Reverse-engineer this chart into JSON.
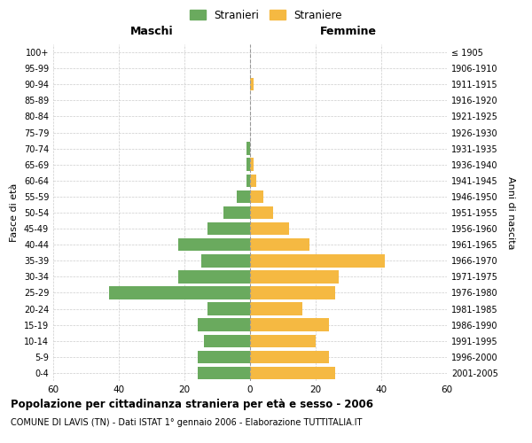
{
  "age_groups": [
    "0-4",
    "5-9",
    "10-14",
    "15-19",
    "20-24",
    "25-29",
    "30-34",
    "35-39",
    "40-44",
    "45-49",
    "50-54",
    "55-59",
    "60-64",
    "65-69",
    "70-74",
    "75-79",
    "80-84",
    "85-89",
    "90-94",
    "95-99",
    "100+"
  ],
  "birth_years": [
    "2001-2005",
    "1996-2000",
    "1991-1995",
    "1986-1990",
    "1981-1985",
    "1976-1980",
    "1971-1975",
    "1966-1970",
    "1961-1965",
    "1956-1960",
    "1951-1955",
    "1946-1950",
    "1941-1945",
    "1936-1940",
    "1931-1935",
    "1926-1930",
    "1921-1925",
    "1916-1920",
    "1911-1915",
    "1906-1910",
    "≤ 1905"
  ],
  "males": [
    16,
    16,
    14,
    16,
    13,
    43,
    22,
    15,
    22,
    13,
    8,
    4,
    1,
    1,
    1,
    0,
    0,
    0,
    0,
    0,
    0
  ],
  "females": [
    26,
    24,
    20,
    24,
    16,
    26,
    27,
    41,
    18,
    12,
    7,
    4,
    2,
    1,
    0,
    0,
    0,
    0,
    1,
    0,
    0
  ],
  "male_color": "#6aaa5e",
  "female_color": "#f5b942",
  "background_color": "#ffffff",
  "grid_color": "#cccccc",
  "title": "Popolazione per cittadinanza straniera per età e sesso - 2006",
  "subtitle": "COMUNE DI LAVIS (TN) - Dati ISTAT 1° gennaio 2006 - Elaborazione TUTTITALIA.IT",
  "xlabel_left": "Maschi",
  "xlabel_right": "Femmine",
  "ylabel_left": "Fasce di età",
  "ylabel_right": "Anni di nascita",
  "legend_male": "Stranieri",
  "legend_female": "Straniere",
  "xlim": 60,
  "bar_height": 0.8
}
